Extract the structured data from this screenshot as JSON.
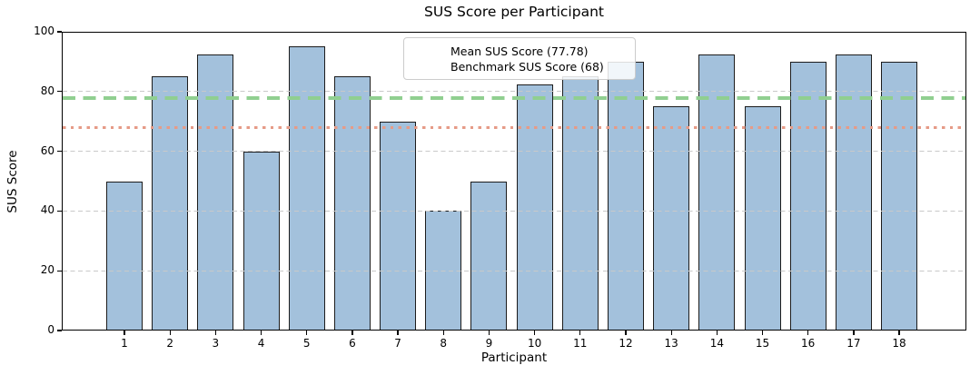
{
  "chart_data": {
    "type": "bar",
    "title": "SUS Score per Participant",
    "xlabel": "Participant",
    "ylabel": "SUS Score",
    "categories": [
      "1",
      "2",
      "3",
      "4",
      "5",
      "6",
      "7",
      "8",
      "9",
      "10",
      "11",
      "12",
      "13",
      "14",
      "15",
      "16",
      "17",
      "18"
    ],
    "values": [
      50,
      85,
      92.5,
      60,
      95,
      85,
      70,
      40,
      50,
      82.5,
      85,
      90,
      75,
      92.5,
      75,
      90,
      92.5,
      90
    ],
    "ylim": [
      0,
      100
    ],
    "yticks": [
      0,
      20,
      40,
      60,
      80,
      100
    ],
    "grid": "horizontal dashed gridlines at y ticks",
    "legend_position": "upper center",
    "bar_fill": "#A3C1DC",
    "bar_edge": "#1C1C1C",
    "gridline_color": "#C9C9C9",
    "reference_lines": [
      {
        "name": "mean",
        "label": "Mean SUS Score (77.78)",
        "value": 77.78,
        "style": "dashed",
        "color": "#90CF90"
      },
      {
        "name": "benchmark",
        "label": "Benchmark SUS Score (68)",
        "value": 68,
        "style": "dotted",
        "color": "#E69B87"
      }
    ]
  }
}
